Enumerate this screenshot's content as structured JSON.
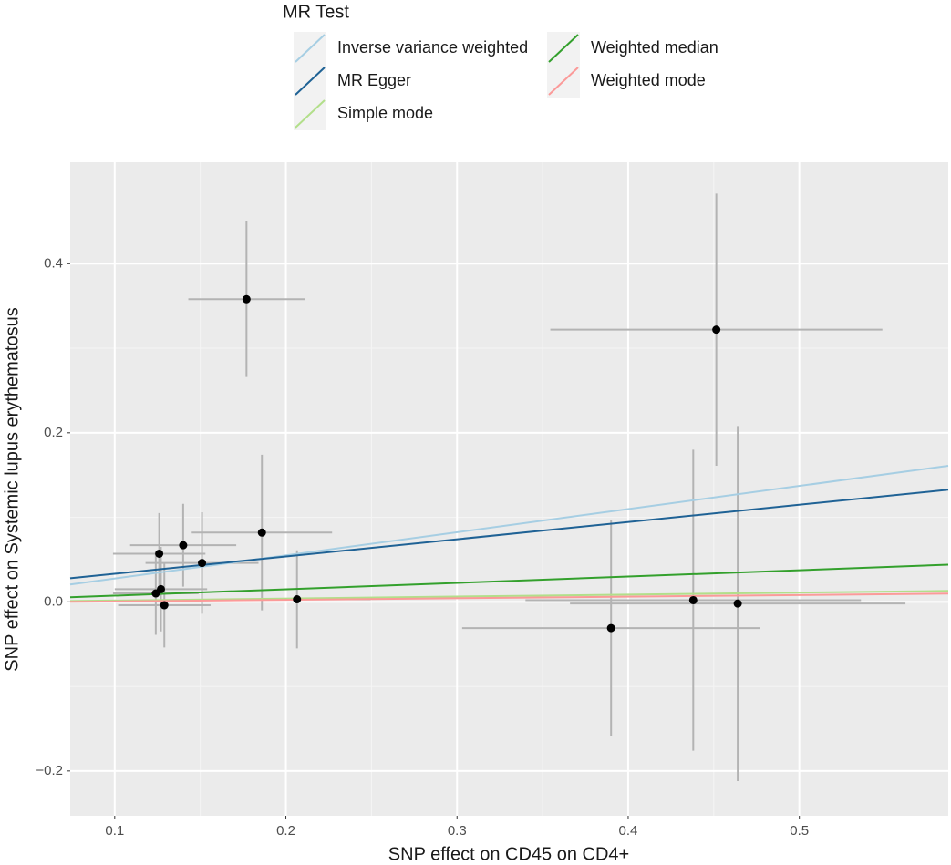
{
  "chart_data": {
    "type": "scatter",
    "x_label": "SNP effect on CD45 on CD4+",
    "y_label": "SNP effect on Systemic lupus erythematosus",
    "legend_title": "MR Test",
    "x": [
      0.177,
      0.4515,
      0.186,
      0.14,
      0.126,
      0.151,
      0.124,
      0.127,
      0.129,
      0.2065,
      0.39,
      0.438,
      0.464
    ],
    "values": [
      0.358,
      0.322,
      0.082,
      0.067,
      0.057,
      0.046,
      0.01,
      0.015,
      -0.004,
      0.003,
      -0.031,
      0.002,
      -0.002
    ],
    "x_error": [
      0.034,
      0.097,
      0.041,
      0.031,
      0.027,
      0.033,
      0.025,
      0.027,
      0.027,
      0.043,
      0.087,
      0.098,
      0.098
    ],
    "error": [
      0.092,
      0.161,
      0.092,
      0.049,
      0.048,
      0.06,
      0.049,
      0.05,
      0.05,
      0.058,
      0.128,
      0.178,
      0.21
    ],
    "color": "#000000",
    "error_color": "#b3b3b3",
    "series": [
      {
        "name": "Inverse variance weighted",
        "color": "#a6cee3",
        "x": [
          0.074,
          0.587
        ],
        "values": [
          0.0205,
          0.161
        ]
      },
      {
        "name": "MR Egger",
        "color": "#1f6295",
        "x": [
          0.074,
          0.587
        ],
        "values": [
          0.028,
          0.1326
        ]
      },
      {
        "name": "Simple mode",
        "color": "#b2df8a",
        "x": [
          0.074,
          0.587
        ],
        "values": [
          0.001,
          0.013
        ]
      },
      {
        "name": "Weighted median",
        "color": "#33a02c",
        "x": [
          0.074,
          0.587
        ],
        "values": [
          0.0054,
          0.044
        ]
      },
      {
        "name": "Weighted mode",
        "color": "#fb9a99",
        "x": [
          0.074,
          0.587
        ],
        "values": [
          0.0,
          0.0097
        ]
      }
    ],
    "xlim": [
      0.074,
      0.587
    ],
    "ylim": [
      -0.253,
      0.52
    ],
    "xticks": [
      0.1,
      0.2,
      0.3,
      0.4,
      0.5
    ],
    "yticks": [
      {
        "value": -0.2,
        "label": "−0.2"
      },
      {
        "value": 0,
        "label": "0.0"
      },
      0.2,
      0.4
    ],
    "grid": true
  }
}
